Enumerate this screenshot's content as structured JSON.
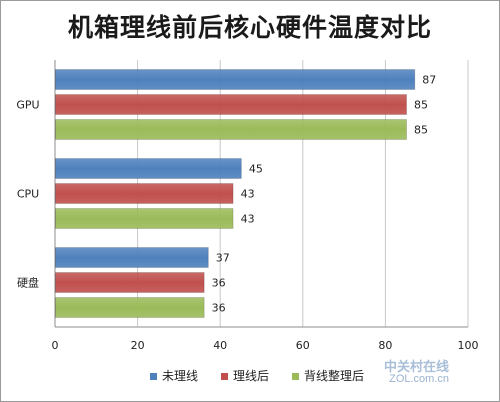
{
  "chart_data": {
    "type": "bar",
    "orientation": "horizontal",
    "title": "机箱理线前后核心硬件温度对比",
    "categories": [
      "GPU",
      "CPU",
      "硬盘"
    ],
    "series": [
      {
        "name": "未理线",
        "color": "#4f81bd",
        "values": [
          87,
          45,
          37
        ]
      },
      {
        "name": "理线后",
        "color": "#c0504d",
        "values": [
          85,
          43,
          36
        ]
      },
      {
        "name": "背线整理后",
        "color": "#9bbb59",
        "values": [
          85,
          43,
          36
        ]
      }
    ],
    "xlim": [
      0,
      100
    ],
    "xticks": [
      0,
      20,
      40,
      60,
      80,
      100
    ],
    "xlabel": "",
    "ylabel": "",
    "grid": true,
    "legend_position": "bottom",
    "data_labels": true
  },
  "watermark": {
    "line1": "中关村在线",
    "line2": "ZOL.com.cn"
  }
}
